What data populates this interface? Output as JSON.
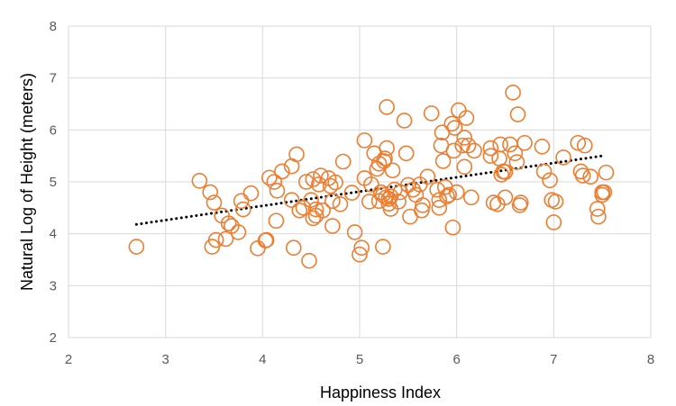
{
  "chart_data": {
    "type": "scatter",
    "title": "",
    "xlabel": "Happiness Index",
    "ylabel": "Natural Log of Height (meters)",
    "xlim": [
      2,
      8
    ],
    "ylim": [
      2,
      8
    ],
    "xticks": [
      "2",
      "3",
      "4",
      "5",
      "6",
      "7",
      "8"
    ],
    "yticks": [
      "2",
      "3",
      "4",
      "5",
      "6",
      "7",
      "8"
    ],
    "grid": true,
    "legend": "none",
    "marker_color": "#ED7D31",
    "trendline": {
      "type": "linear",
      "style": "dotted",
      "color": "#000000",
      "x": [
        2.7,
        7.5
      ],
      "y": [
        4.18,
        5.5
      ]
    },
    "series": [
      {
        "x": [
          2.7,
          3.35,
          3.46,
          3.48,
          3.5,
          3.52,
          3.58,
          3.62,
          3.65,
          3.68,
          3.75,
          3.78,
          3.8,
          3.88,
          3.95,
          4.03,
          4.04,
          4.07,
          4.12,
          4.14,
          4.15,
          4.2,
          4.3,
          4.3,
          4.32,
          4.35,
          4.38,
          4.42,
          4.45,
          4.48,
          4.5,
          4.52,
          4.52,
          4.55,
          4.55,
          4.58,
          4.6,
          4.62,
          4.68,
          4.7,
          4.72,
          4.72,
          4.75,
          4.8,
          4.83,
          4.92,
          4.95,
          5.0,
          5.02,
          5.05,
          5.05,
          5.1,
          5.12,
          5.15,
          5.18,
          5.2,
          5.2,
          5.22,
          5.24,
          5.24,
          5.25,
          5.26,
          5.27,
          5.28,
          5.28,
          5.3,
          5.3,
          5.32,
          5.32,
          5.34,
          5.36,
          5.4,
          5.42,
          5.46,
          5.48,
          5.5,
          5.52,
          5.55,
          5.58,
          5.62,
          5.64,
          5.65,
          5.7,
          5.74,
          5.8,
          5.82,
          5.82,
          5.84,
          5.85,
          5.86,
          5.88,
          5.9,
          5.92,
          5.95,
          5.96,
          5.97,
          5.98,
          6.0,
          6.02,
          6.06,
          6.08,
          6.08,
          6.1,
          6.12,
          6.15,
          6.18,
          6.35,
          6.35,
          6.38,
          6.42,
          6.44,
          6.45,
          6.46,
          6.48,
          6.5,
          6.5,
          6.55,
          6.58,
          6.6,
          6.62,
          6.63,
          6.65,
          6.66,
          6.7,
          6.88,
          6.9,
          6.96,
          6.98,
          7.0,
          7.02,
          7.1,
          7.25,
          7.28,
          7.3,
          7.32,
          7.38,
          7.45,
          7.46,
          7.5,
          7.5,
          7.52,
          7.54
        ],
        "y": [
          3.75,
          5.02,
          4.8,
          3.75,
          4.6,
          3.88,
          4.35,
          3.9,
          4.2,
          4.15,
          4.03,
          4.63,
          4.47,
          4.78,
          3.72,
          3.87,
          3.88,
          5.08,
          5.0,
          4.25,
          4.83,
          5.2,
          4.65,
          5.3,
          3.73,
          5.53,
          4.45,
          4.5,
          5.0,
          3.48,
          4.65,
          4.3,
          5.05,
          4.47,
          4.35,
          4.95,
          5.12,
          4.45,
          5.07,
          4.92,
          4.15,
          4.63,
          4.99,
          4.57,
          5.39,
          4.79,
          4.03,
          3.6,
          3.73,
          5.07,
          5.8,
          4.62,
          4.95,
          5.55,
          5.25,
          4.63,
          5.35,
          4.8,
          3.75,
          4.75,
          5.4,
          5.45,
          4.7,
          5.65,
          6.44,
          4.67,
          4.58,
          4.72,
          4.48,
          5.22,
          4.85,
          4.62,
          4.8,
          6.18,
          5.55,
          4.94,
          4.33,
          4.85,
          4.75,
          4.95,
          4.45,
          4.55,
          5.1,
          6.32,
          4.85,
          4.5,
          4.65,
          5.7,
          5.95,
          5.4,
          4.9,
          4.72,
          4.75,
          6.12,
          4.12,
          5.6,
          6.04,
          4.8,
          6.38,
          5.7,
          5.29,
          5.85,
          6.23,
          5.7,
          4.7,
          5.6,
          5.5,
          5.65,
          4.6,
          4.57,
          5.45,
          5.72,
          5.14,
          5.2,
          4.7,
          5.19,
          5.72,
          6.72,
          5.55,
          5.38,
          6.3,
          4.55,
          4.6,
          5.75,
          5.68,
          5.2,
          5.03,
          4.65,
          4.22,
          4.62,
          5.47,
          5.75,
          5.2,
          5.12,
          5.7,
          5.1,
          4.48,
          4.33,
          4.8,
          4.75,
          4.8,
          5.18
        ]
      }
    ]
  }
}
